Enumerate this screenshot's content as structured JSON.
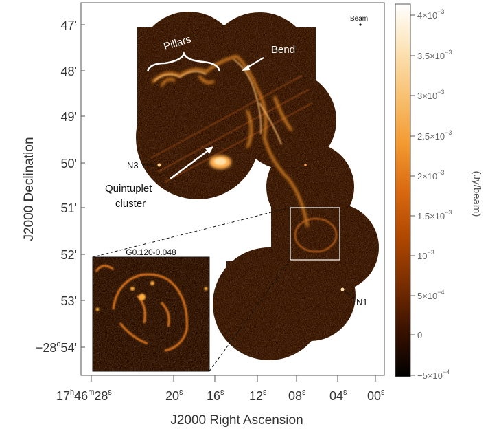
{
  "figure": {
    "xlabel": "J2000 Right Ascension",
    "ylabel": "J2000 Declination",
    "beam_label": "Beam",
    "cbar_label": "(Jy/beam)",
    "dec_ticks": [
      "47'",
      "48'",
      "49'",
      "50'",
      "51'",
      "52'",
      "53'"
    ],
    "dec_last": {
      "prefix": "−28",
      "sup": "o",
      "suffix": "54'"
    },
    "ra_ticks": [
      {
        "main": "17",
        "sup1": "h",
        "mid": "46",
        "sup2": "m",
        "tail": "28",
        "sup3": "s"
      },
      {
        "main": "20",
        "sup1": "s"
      },
      {
        "main": "16",
        "sup1": "s"
      },
      {
        "main": "12",
        "sup1": "s"
      },
      {
        "main": "08",
        "sup1": "s"
      },
      {
        "main": "04",
        "sup1": "s"
      },
      {
        "main": "00",
        "sup1": "s"
      }
    ],
    "cbar_ticks": [
      {
        "m": "4×10",
        "e": "−3"
      },
      {
        "m": "3.5×10",
        "e": "−3"
      },
      {
        "m": "3×10",
        "e": "−3"
      },
      {
        "m": "2.5×10",
        "e": "−3"
      },
      {
        "m": "2×10",
        "e": "−3"
      },
      {
        "m": "1.5×10",
        "e": "−3"
      },
      {
        "m": "10",
        "e": "−3"
      },
      {
        "m": "5×10",
        "e": "−4"
      },
      {
        "m": "0",
        "e": ""
      },
      {
        "m": "−5×10",
        "e": "−4"
      }
    ],
    "cbar_colors": [
      "#000000",
      "#3a1200",
      "#7a2e00",
      "#b04800",
      "#d96a10",
      "#f39a30",
      "#f8c070",
      "#fce2b4",
      "#ffffff"
    ],
    "annotations": {
      "pillars": "Pillars",
      "bend": "Bend",
      "n3": "N3",
      "n1": "N1",
      "quintuplet_1": "Quintuplet",
      "quintuplet_2": "cluster",
      "inset_title": "G0.120-0.048"
    }
  }
}
